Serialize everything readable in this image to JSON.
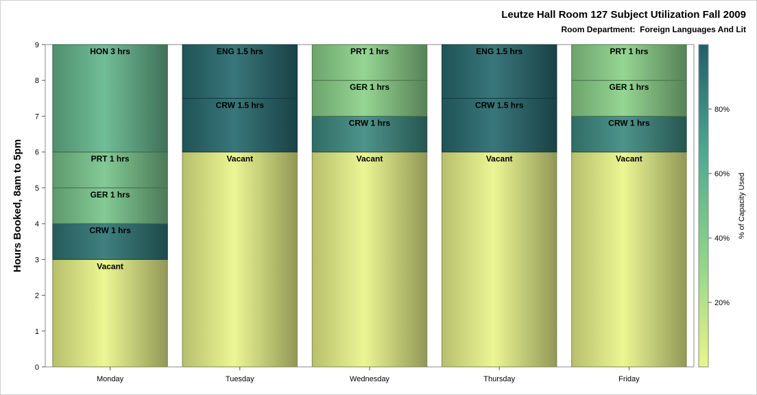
{
  "title": "Leutze Hall Room 127 Subject Utilization Fall 2009",
  "subtitle": "Room Department:  Foreign Languages And Lit",
  "chart_data": {
    "type": "bar",
    "stacked": true,
    "ylabel": "Hours Booked, 8am to 5pm",
    "xlabel": "",
    "ylim": [
      0,
      9
    ],
    "yticks": [
      "0",
      "1",
      "2",
      "3",
      "4",
      "5",
      "6",
      "7",
      "8",
      "9"
    ],
    "grid": false,
    "categories": [
      "Monday",
      "Tuesday",
      "Wednesday",
      "Thursday",
      "Friday"
    ],
    "stacks": [
      {
        "day": "Monday",
        "segments": [
          {
            "label": "Vacant",
            "hours": 3,
            "pct": 0
          },
          {
            "label": "CRW 1 hrs",
            "hours": 1,
            "pct": 90
          },
          {
            "label": "GER 1 hrs",
            "hours": 1,
            "pct": 45
          },
          {
            "label": "PRT 1 hrs",
            "hours": 1,
            "pct": 45
          },
          {
            "label": "HON 3 hrs",
            "hours": 3,
            "pct": 55
          }
        ]
      },
      {
        "day": "Tuesday",
        "segments": [
          {
            "label": "Vacant",
            "hours": 6,
            "pct": 0
          },
          {
            "label": "CRW 1.5 hrs",
            "hours": 1.5,
            "pct": 95
          },
          {
            "label": "ENG 1.5 hrs",
            "hours": 1.5,
            "pct": 95
          }
        ]
      },
      {
        "day": "Wednesday",
        "segments": [
          {
            "label": "Vacant",
            "hours": 6,
            "pct": 0
          },
          {
            "label": "CRW 1 hrs",
            "hours": 1,
            "pct": 80
          },
          {
            "label": "GER 1 hrs",
            "hours": 1,
            "pct": 35
          },
          {
            "label": "PRT 1 hrs",
            "hours": 1,
            "pct": 35
          }
        ]
      },
      {
        "day": "Thursday",
        "segments": [
          {
            "label": "Vacant",
            "hours": 6,
            "pct": 0
          },
          {
            "label": "CRW 1.5 hrs",
            "hours": 1.5,
            "pct": 95
          },
          {
            "label": "ENG 1.5 hrs",
            "hours": 1.5,
            "pct": 95
          }
        ]
      },
      {
        "day": "Friday",
        "segments": [
          {
            "label": "Vacant",
            "hours": 6,
            "pct": 0
          },
          {
            "label": "CRW 1 hrs",
            "hours": 1,
            "pct": 80
          },
          {
            "label": "GER 1 hrs",
            "hours": 1,
            "pct": 35
          },
          {
            "label": "PRT 1 hrs",
            "hours": 1,
            "pct": 35
          }
        ]
      }
    ],
    "colorbar": {
      "label": "% of Capacity Used",
      "ticks": [
        {
          "label": "20%",
          "value": 20
        },
        {
          "label": "40%",
          "value": 40
        },
        {
          "label": "60%",
          "value": 60
        },
        {
          "label": "80%",
          "value": 80
        }
      ],
      "range": [
        0,
        100
      ],
      "colors": [
        "#eaf58a",
        "#8fd48a",
        "#4fa890",
        "#215f6a"
      ]
    }
  }
}
